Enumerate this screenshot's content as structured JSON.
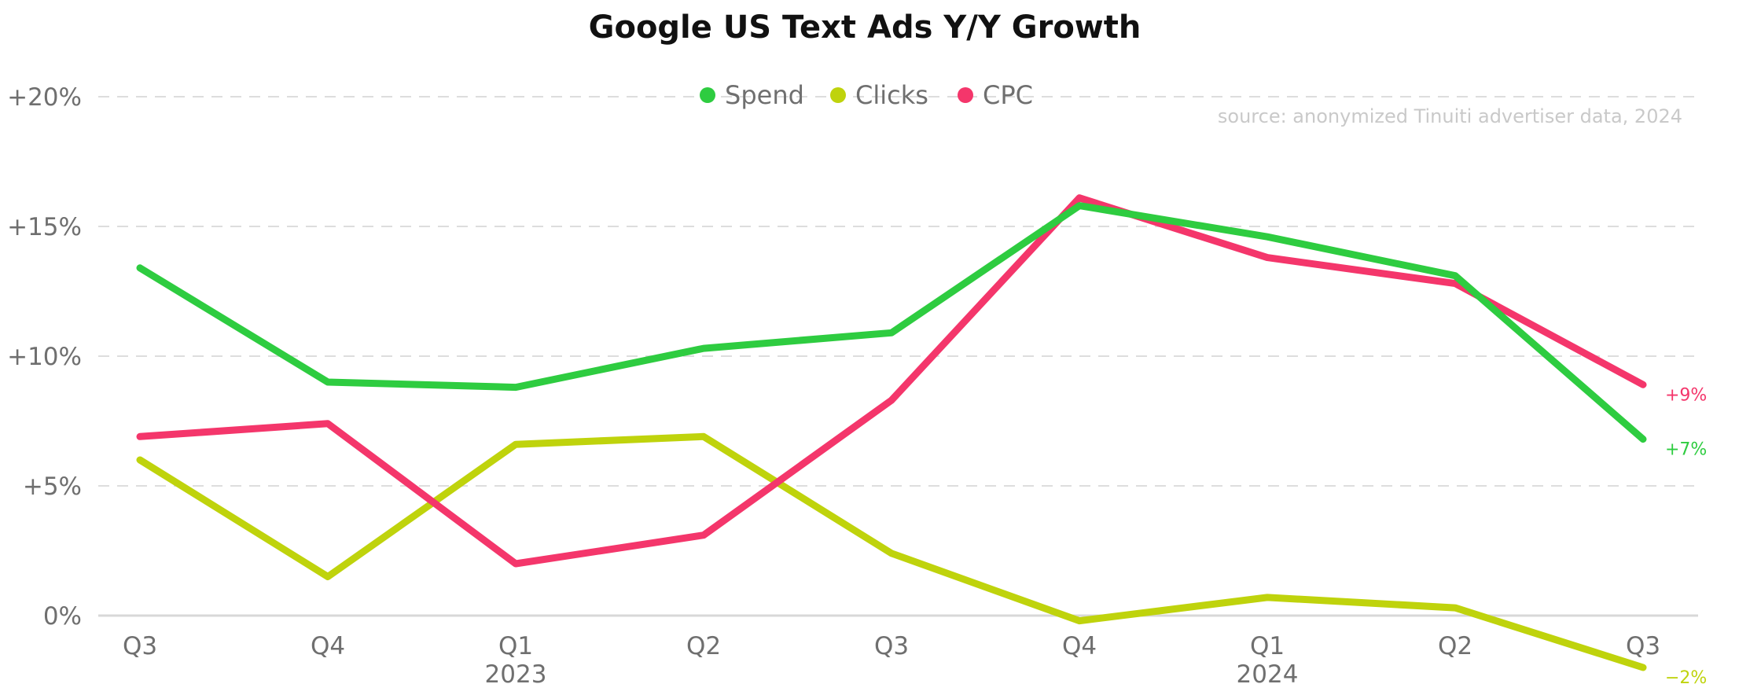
{
  "chart_data": {
    "type": "line",
    "title": "Google US Text Ads Y/Y Growth",
    "source": "source: anonymized Tinuiti advertiser data, 2024",
    "categories": [
      "Q3",
      "Q4",
      "Q1",
      "Q2",
      "Q3",
      "Q4",
      "Q1",
      "Q2",
      "Q3"
    ],
    "year_labels": [
      {
        "index": 2,
        "label": "2023"
      },
      {
        "index": 6,
        "label": "2024"
      }
    ],
    "ylim": [
      0,
      20
    ],
    "y_ticks": [
      {
        "value": 20,
        "label": "+20%"
      },
      {
        "value": 15,
        "label": "+15%"
      },
      {
        "value": 10,
        "label": "+10%"
      },
      {
        "value": 5,
        "label": "+5%"
      },
      {
        "value": 0,
        "label": "0%"
      }
    ],
    "grid": true,
    "legend": "top-center",
    "series": [
      {
        "name": "Spend",
        "color": "#2ecc40",
        "values": [
          13.4,
          9.0,
          8.8,
          10.3,
          10.9,
          15.8,
          14.6,
          13.1,
          6.8
        ],
        "end_label": "+7%"
      },
      {
        "name": "Clicks",
        "color": "#bfd30c",
        "values": [
          6.0,
          1.5,
          6.6,
          6.9,
          2.4,
          -0.2,
          0.7,
          0.3,
          -2.0
        ],
        "end_label": "−2%"
      },
      {
        "name": "CPC",
        "color": "#f4366b",
        "values": [
          6.9,
          7.4,
          2.0,
          3.1,
          8.3,
          16.1,
          13.8,
          12.8,
          8.9
        ],
        "end_label": "+9%"
      }
    ]
  }
}
